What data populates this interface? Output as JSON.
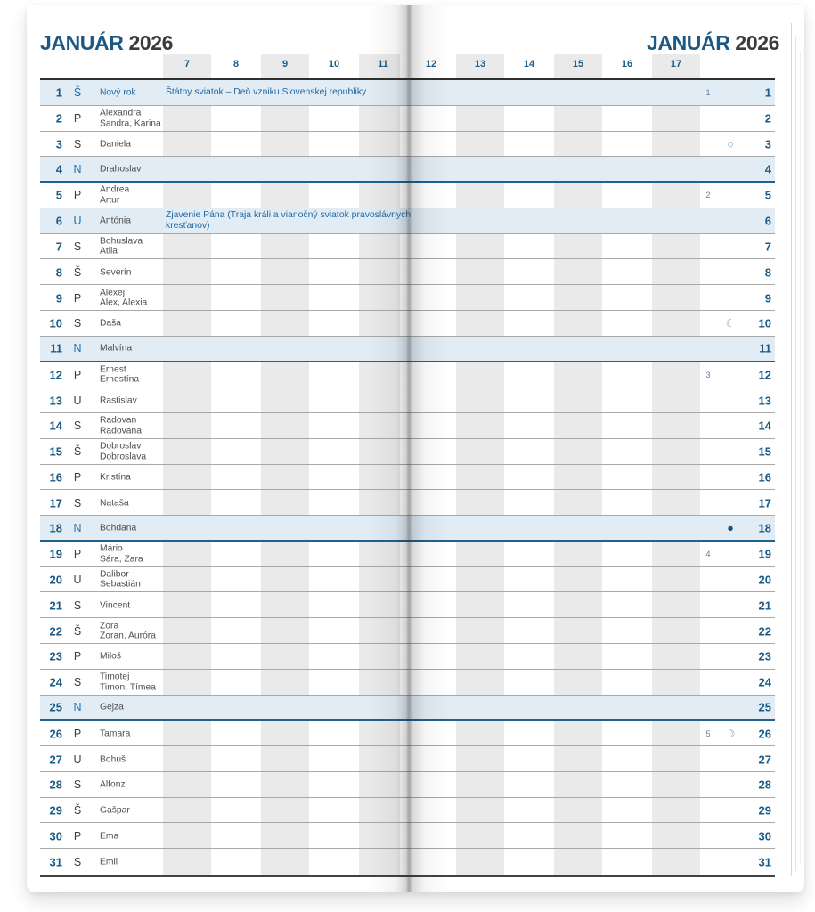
{
  "titles": {
    "left": {
      "month": "JANUÁR",
      "year": "2026"
    },
    "right": {
      "month": "JANUÁR",
      "year": "2026"
    }
  },
  "hours": {
    "left": [
      "7",
      "8",
      "9",
      "10",
      "11"
    ],
    "right": [
      "12",
      "13",
      "14",
      "15",
      "16",
      "17"
    ]
  },
  "moon_icons": {
    "full_moon": "○",
    "last_quarter": "☾",
    "new_moon": "●",
    "first_quarter": "☽"
  },
  "colors": {
    "title_blue": "#1c5884",
    "day_number_blue": "#1a5b86",
    "note_blue": "#2268a2",
    "sunday_row_bg": "#e1ecf5",
    "hour_band_gray": "#eaeaea",
    "sunday_rule_blue": "#20618f",
    "text_dark": "#3d3d3d"
  },
  "days": [
    {
      "day": "1",
      "letter": "Š",
      "names": [
        "Nový rok"
      ],
      "holiday": true,
      "name_highlight": true,
      "week": "1",
      "note": "Štátny sviatok – Deň vzniku Slovenskej republiky"
    },
    {
      "day": "2",
      "letter": "P",
      "names": [
        "Alexandra",
        "Sandra, Karina"
      ]
    },
    {
      "day": "3",
      "letter": "S",
      "names": [
        "Daniela"
      ],
      "moon": "full_moon"
    },
    {
      "day": "4",
      "letter": "N",
      "names": [
        "Drahoslav"
      ],
      "sunday": true
    },
    {
      "day": "5",
      "letter": "P",
      "names": [
        "Andrea",
        "Artur"
      ],
      "week": "2"
    },
    {
      "day": "6",
      "letter": "U",
      "names": [
        "Antónia"
      ],
      "holiday": true,
      "note": "Zjavenie Pána (Traja králi a vianočný sviatok pravoslávnych kresťanov)"
    },
    {
      "day": "7",
      "letter": "S",
      "names": [
        "Bohuslava",
        "Atila"
      ]
    },
    {
      "day": "8",
      "letter": "Š",
      "names": [
        "Severín"
      ]
    },
    {
      "day": "9",
      "letter": "P",
      "names": [
        "Alexej",
        "Alex, Alexia"
      ]
    },
    {
      "day": "10",
      "letter": "S",
      "names": [
        "Daša"
      ],
      "moon": "last_quarter"
    },
    {
      "day": "11",
      "letter": "N",
      "names": [
        "Malvína"
      ],
      "sunday": true
    },
    {
      "day": "12",
      "letter": "P",
      "names": [
        "Ernest",
        "Ernestína"
      ],
      "week": "3"
    },
    {
      "day": "13",
      "letter": "U",
      "names": [
        "Rastislav"
      ]
    },
    {
      "day": "14",
      "letter": "S",
      "names": [
        "Radovan",
        "Radovana"
      ]
    },
    {
      "day": "15",
      "letter": "Š",
      "names": [
        "Dobroslav",
        "Dobroslava"
      ]
    },
    {
      "day": "16",
      "letter": "P",
      "names": [
        "Kristína"
      ]
    },
    {
      "day": "17",
      "letter": "S",
      "names": [
        "Nataša"
      ]
    },
    {
      "day": "18",
      "letter": "N",
      "names": [
        "Bohdana"
      ],
      "sunday": true,
      "moon": "new_moon"
    },
    {
      "day": "19",
      "letter": "P",
      "names": [
        "Mário",
        "Sára, Zara"
      ],
      "week": "4"
    },
    {
      "day": "20",
      "letter": "U",
      "names": [
        "Dalibor",
        "Sebastián"
      ]
    },
    {
      "day": "21",
      "letter": "S",
      "names": [
        "Vincent"
      ]
    },
    {
      "day": "22",
      "letter": "Š",
      "names": [
        "Zora",
        "Zoran, Auróra"
      ]
    },
    {
      "day": "23",
      "letter": "P",
      "names": [
        "Miloš"
      ]
    },
    {
      "day": "24",
      "letter": "S",
      "names": [
        "Timotej",
        "Timon, Tímea"
      ]
    },
    {
      "day": "25",
      "letter": "N",
      "names": [
        "Gejza"
      ],
      "sunday": true
    },
    {
      "day": "26",
      "letter": "P",
      "names": [
        "Tamara"
      ],
      "week": "5",
      "moon": "first_quarter"
    },
    {
      "day": "27",
      "letter": "U",
      "names": [
        "Bohuš"
      ]
    },
    {
      "day": "28",
      "letter": "S",
      "names": [
        "Alfonz"
      ]
    },
    {
      "day": "29",
      "letter": "Š",
      "names": [
        "Gašpar"
      ]
    },
    {
      "day": "30",
      "letter": "P",
      "names": [
        "Ema"
      ]
    },
    {
      "day": "31",
      "letter": "S",
      "names": [
        "Emil"
      ]
    }
  ]
}
